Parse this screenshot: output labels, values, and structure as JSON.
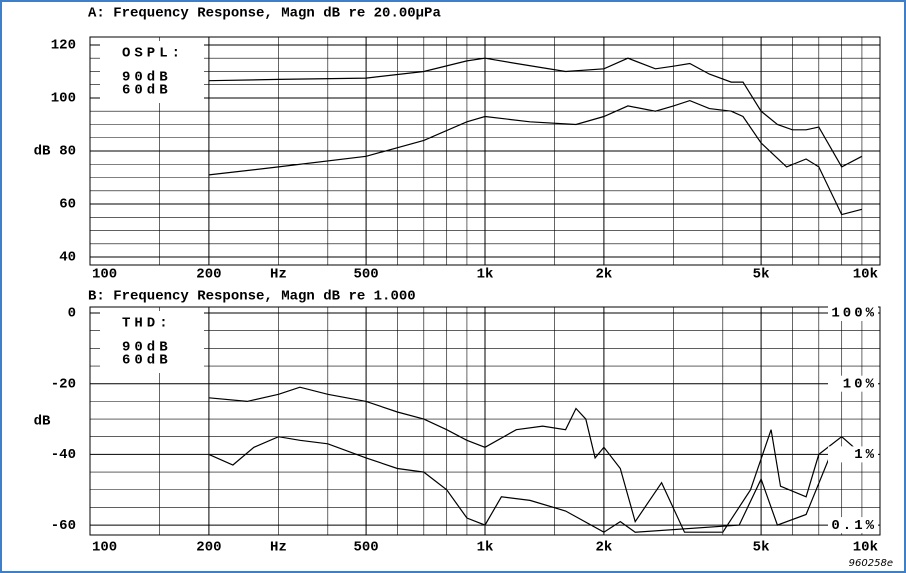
{
  "chart_data": [
    {
      "type": "line",
      "title": "A: Frequency Response, Magn dB re 20.00µPa",
      "ylabel": "dB",
      "xlabel": "Hz",
      "xlog": true,
      "xlim": [
        100,
        10000
      ],
      "xticks": [
        100,
        200,
        500,
        {
          "value": 1000,
          "label": "1k"
        },
        {
          "value": 2000,
          "label": "2k"
        },
        {
          "value": 5000,
          "label": "5k"
        },
        {
          "value": 10000,
          "label": "10k"
        }
      ],
      "xminorticks": [
        150,
        300,
        400,
        600,
        700,
        800,
        900,
        1500,
        3000,
        4000,
        6000,
        7000,
        8000,
        9000
      ],
      "ylim": [
        37,
        123
      ],
      "yticks": [
        40,
        60,
        80,
        100,
        120
      ],
      "yminorticks": [
        45,
        50,
        55,
        65,
        70,
        75,
        85,
        90,
        95,
        105,
        110,
        115
      ],
      "legend_title": "OSPL:",
      "grid": true,
      "series": [
        {
          "name": "90dB",
          "color": "#000000",
          "x": [
            200,
            300,
            500,
            700,
            900,
            1000,
            1200,
            1600,
            2000,
            2300,
            2700,
            3000,
            3300,
            3700,
            4200,
            4500,
            5000,
            5500,
            6000,
            6500,
            7000,
            8000,
            9000
          ],
          "values": [
            106.5,
            107,
            107.5,
            110,
            114,
            115,
            113,
            110,
            111,
            115,
            111,
            112,
            113,
            109,
            106,
            106,
            95,
            90,
            88,
            88,
            89,
            74,
            78
          ]
        },
        {
          "name": "60dB",
          "color": "#000000",
          "x": [
            200,
            300,
            500,
            700,
            900,
            1000,
            1300,
            1700,
            2000,
            2300,
            2700,
            3000,
            3300,
            3700,
            4200,
            4500,
            5000,
            5800,
            6500,
            7000,
            8000,
            9000
          ],
          "values": [
            71,
            74,
            78,
            84,
            91,
            93,
            91,
            90,
            93,
            97,
            95,
            97,
            99,
            96,
            95,
            93,
            83,
            74,
            77,
            74,
            56,
            58
          ]
        }
      ]
    },
    {
      "type": "line",
      "title": "B: Frequency Response, Magn dB re 1.000",
      "ylabel": "dB",
      "xlabel": "Hz",
      "xlog": true,
      "xlim": [
        100,
        10000
      ],
      "xticks": [
        100,
        200,
        500,
        {
          "value": 1000,
          "label": "1k"
        },
        {
          "value": 2000,
          "label": "2k"
        },
        {
          "value": 5000,
          "label": "5k"
        },
        {
          "value": 10000,
          "label": "10k"
        }
      ],
      "xminorticks": [
        150,
        300,
        400,
        600,
        700,
        800,
        900,
        1500,
        3000,
        4000,
        6000,
        7000,
        8000,
        9000
      ],
      "ylim": [
        -62.8,
        1.7
      ],
      "yticks": [
        0,
        -20,
        -40,
        -60
      ],
      "yminorticks": [
        -5,
        -10,
        -15,
        -25,
        -30,
        -35,
        -45,
        -50,
        -55
      ],
      "y2log": true,
      "y2lim": [
        0.0724,
        121.6
      ],
      "y2ticks": [
        {
          "value": 100,
          "label": "100%"
        },
        {
          "value": 10,
          "label": "10%"
        },
        {
          "value": 1,
          "label": "1%"
        },
        {
          "value": 0.1,
          "label": "0.1%"
        }
      ],
      "legend_title": "THD:",
      "grid": true,
      "series": [
        {
          "name": "90dB",
          "color": "#000000",
          "x": [
            200,
            250,
            300,
            340,
            400,
            500,
            600,
            700,
            800,
            900,
            1000,
            1200,
            1400,
            1600,
            1700,
            1800,
            1900,
            2000,
            2200,
            2400,
            2800,
            3200,
            4000,
            4700,
            5300,
            5600,
            6500,
            7000,
            8000,
            9000
          ],
          "values": [
            -24,
            -25,
            -23,
            -21,
            -23,
            -25,
            -28,
            -30,
            -33,
            -36,
            -38,
            -33,
            -32,
            -33,
            -27,
            -30,
            -41,
            -38,
            -44,
            -59,
            -48,
            -62,
            -62,
            -50,
            -33,
            -49,
            -52,
            -40,
            -35,
            -40
          ]
        },
        {
          "name": "60dB",
          "color": "#000000",
          "x": [
            200,
            230,
            260,
            300,
            340,
            400,
            500,
            600,
            700,
            800,
            900,
            1000,
            1100,
            1300,
            1600,
            2000,
            2200,
            2400,
            4400,
            5000,
            5500,
            6500,
            7500,
            9000
          ],
          "values": [
            -40,
            -43,
            -38,
            -35,
            -36,
            -37,
            -41,
            -44,
            -45,
            -50,
            -58,
            -60,
            -52,
            -53,
            -56,
            -62,
            -59,
            -62,
            -60,
            -47,
            -60,
            -57,
            -40,
            -38
          ]
        }
      ]
    }
  ],
  "footer": "960258e"
}
